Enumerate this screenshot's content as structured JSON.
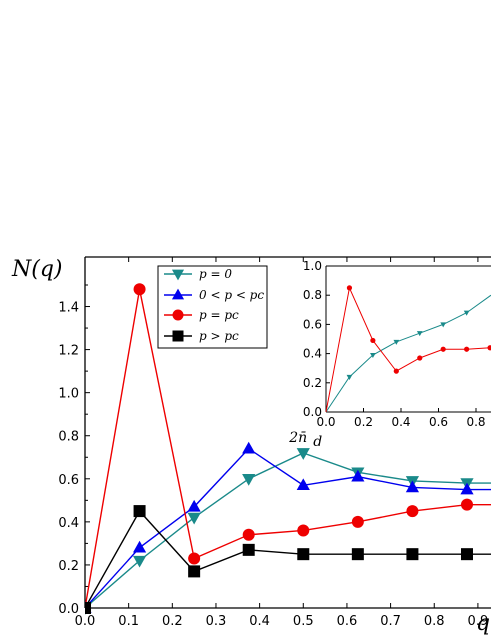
{
  "chart_data": [
    {
      "type": "line",
      "ylabel": "N(q)",
      "xlabel": "q",
      "xlim": [
        0.0,
        0.93
      ],
      "ylim": [
        0.0,
        1.63
      ],
      "xticks": [
        "0.0",
        "0.1",
        "0.2",
        "0.3",
        "0.4",
        "0.5",
        "0.6",
        "0.7",
        "0.8",
        "0.9"
      ],
      "yticks": [
        "0.0",
        "0.2",
        "0.4",
        "0.6",
        "0.8",
        "1.0",
        "1.2",
        "1.4"
      ],
      "legend_position": "top-left",
      "annotation": {
        "text": "2n̄",
        "sub": "d",
        "x": 0.5,
        "y": 0.79
      },
      "series": [
        {
          "name": "p = 0",
          "color": "#1a8a8a",
          "marker": "triangle-down",
          "x": [
            0.0,
            0.125,
            0.25,
            0.375,
            0.5,
            0.625,
            0.75,
            0.875,
            0.95
          ],
          "y": [
            0.0,
            0.22,
            0.42,
            0.6,
            0.72,
            0.63,
            0.59,
            0.58,
            0.58
          ]
        },
        {
          "name": "0 < p < pc",
          "color": "#0000ee",
          "marker": "triangle-up",
          "x": [
            0.0,
            0.125,
            0.25,
            0.375,
            0.5,
            0.625,
            0.75,
            0.875,
            0.95
          ],
          "y": [
            0.0,
            0.28,
            0.47,
            0.74,
            0.57,
            0.61,
            0.56,
            0.55,
            0.55
          ]
        },
        {
          "name": "p = pc",
          "color": "#ee0000",
          "marker": "circle",
          "x": [
            0.0,
            0.125,
            0.25,
            0.375,
            0.5,
            0.625,
            0.75,
            0.875,
            0.95
          ],
          "y": [
            0.0,
            1.48,
            0.23,
            0.34,
            0.36,
            0.4,
            0.45,
            0.48,
            0.48
          ]
        },
        {
          "name": "p > pc",
          "color": "#000000",
          "marker": "square",
          "x": [
            0.0,
            0.125,
            0.25,
            0.375,
            0.5,
            0.625,
            0.75,
            0.875,
            0.95
          ],
          "y": [
            0.0,
            0.45,
            0.17,
            0.27,
            0.25,
            0.25,
            0.25,
            0.25,
            0.25
          ]
        }
      ]
    },
    {
      "type": "line",
      "xlim": [
        0.0,
        0.88
      ],
      "ylim": [
        0.0,
        1.0
      ],
      "xticks": [
        "0.0",
        "0.2",
        "0.4",
        "0.6",
        "0.8"
      ],
      "yticks": [
        "0.0",
        "0.2",
        "0.4",
        "0.6",
        "0.8",
        "1.0"
      ],
      "series": [
        {
          "color": "#1a8a8a",
          "marker": "triangle-down",
          "x": [
            0.0,
            0.125,
            0.25,
            0.375,
            0.5,
            0.625,
            0.75,
            0.88
          ],
          "y": [
            0.0,
            0.24,
            0.39,
            0.48,
            0.54,
            0.6,
            0.68,
            0.8
          ]
        },
        {
          "color": "#ee0000",
          "marker": "circle",
          "x": [
            0.0,
            0.125,
            0.25,
            0.375,
            0.5,
            0.625,
            0.75,
            0.875,
            0.88
          ],
          "y": [
            0.0,
            0.85,
            0.49,
            0.28,
            0.37,
            0.43,
            0.43,
            0.44,
            0.44
          ]
        }
      ]
    }
  ]
}
